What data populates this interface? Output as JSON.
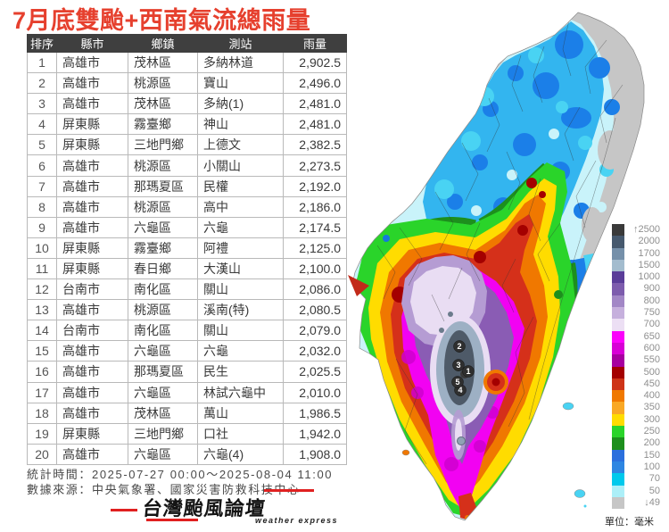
{
  "title": "7月底雙颱+西南氣流總雨量",
  "colors": {
    "title_red": "#e6402e",
    "table_header_bg": "#3f3f3f",
    "logo_red": "#e02020"
  },
  "table": {
    "headers": [
      "排序",
      "縣市",
      "鄉鎮",
      "測站",
      "雨量"
    ],
    "rows": [
      [
        "1",
        "高雄市",
        "茂林區",
        "多納林道",
        "2,902.5"
      ],
      [
        "2",
        "高雄市",
        "桃源區",
        "寶山",
        "2,496.0"
      ],
      [
        "3",
        "高雄市",
        "茂林區",
        "多納(1)",
        "2,481.0"
      ],
      [
        "4",
        "屏東縣",
        "霧臺鄉",
        "神山",
        "2,481.0"
      ],
      [
        "5",
        "屏東縣",
        "三地門鄉",
        "上德文",
        "2,382.5"
      ],
      [
        "6",
        "高雄市",
        "桃源區",
        "小關山",
        "2,273.5"
      ],
      [
        "7",
        "高雄市",
        "那瑪夏區",
        "民權",
        "2,192.0"
      ],
      [
        "8",
        "高雄市",
        "桃源區",
        "高中",
        "2,186.0"
      ],
      [
        "9",
        "高雄市",
        "六龜區",
        "六龜",
        "2,174.5"
      ],
      [
        "10",
        "屏東縣",
        "霧臺鄉",
        "阿禮",
        "2,125.0"
      ],
      [
        "11",
        "屏東縣",
        "春日鄉",
        "大漢山",
        "2,100.0"
      ],
      [
        "12",
        "台南市",
        "南化區",
        "關山",
        "2,086.0"
      ],
      [
        "13",
        "高雄市",
        "桃源區",
        "溪南(特)",
        "2,080.5"
      ],
      [
        "14",
        "台南市",
        "南化區",
        "關山",
        "2,079.0"
      ],
      [
        "15",
        "高雄市",
        "六龜區",
        "六龜",
        "2,032.0"
      ],
      [
        "16",
        "高雄市",
        "那瑪夏區",
        "民生",
        "2,025.5"
      ],
      [
        "17",
        "高雄市",
        "六龜區",
        "林試六龜中",
        "2,010.0"
      ],
      [
        "18",
        "高雄市",
        "茂林區",
        "萬山",
        "1,986.5"
      ],
      [
        "19",
        "屏東縣",
        "三地門鄉",
        "口社",
        "1,942.0"
      ],
      [
        "20",
        "高雄市",
        "六龜區",
        "六龜(4)",
        "1,908.0"
      ]
    ]
  },
  "footer": {
    "stats_time": "統計時間：2025-07-27 00:00～2025-08-04 11:00",
    "data_source": "數據來源：中央氣象署、國家災害防救科技中心"
  },
  "logo": {
    "name": "台灣颱風論壇",
    "subtitle": "weather express"
  },
  "legend": {
    "unit": "單位：毫米",
    "items": [
      {
        "label": "↑2500",
        "color": "#3a3a3a"
      },
      {
        "label": "2000",
        "color": "#46596e"
      },
      {
        "label": "1700",
        "color": "#7590aa"
      },
      {
        "label": "1500",
        "color": "#a3bcce"
      },
      {
        "label": "1000",
        "color": "#5a3d99"
      },
      {
        "label": "900",
        "color": "#7d5cad"
      },
      {
        "label": "800",
        "color": "#a287c6"
      },
      {
        "label": "750",
        "color": "#c6b0dd"
      },
      {
        "label": "700",
        "color": "#ecdff4"
      },
      {
        "label": "650",
        "color": "#fb02fb"
      },
      {
        "label": "600",
        "color": "#d800d6"
      },
      {
        "label": "550",
        "color": "#a700a0"
      },
      {
        "label": "500",
        "color": "#a40000"
      },
      {
        "label": "450",
        "color": "#ce3418"
      },
      {
        "label": "400",
        "color": "#f07800"
      },
      {
        "label": "350",
        "color": "#f9a825"
      },
      {
        "label": "300",
        "color": "#ffdc00"
      },
      {
        "label": "250",
        "color": "#2ad42a"
      },
      {
        "label": "200",
        "color": "#1d8f1d"
      },
      {
        "label": "150",
        "color": "#2b6fdd"
      },
      {
        "label": "100",
        "color": "#2e86e2"
      },
      {
        "label": "70",
        "color": "#00c9ec"
      },
      {
        "label": "50",
        "color": "#aceff8"
      },
      {
        "label": "↓49",
        "color": "#c6c6c6"
      }
    ]
  },
  "map": {
    "markers": [
      "1",
      "2",
      "3",
      "4",
      "5"
    ]
  }
}
